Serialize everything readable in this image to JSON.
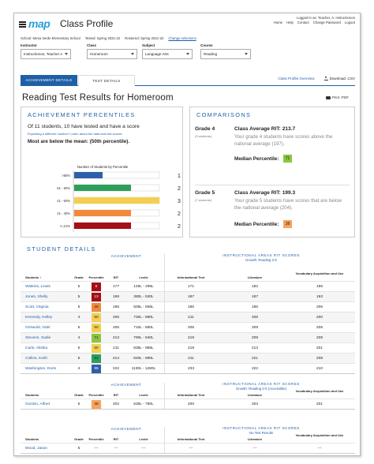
{
  "header": {
    "logo": "map",
    "title": "Class Profile",
    "user": "Logged in as: Teacher, A, Instructionon",
    "nav": [
      "Home",
      "Help",
      "Contact",
      "Change Password",
      "Logout"
    ]
  },
  "context": {
    "school": "School: Mesa Verde Elementary School",
    "tested": "Tested: Spring 2021-22",
    "rostered": "Rostered: Spring 2021-22",
    "change_link": "Change selections"
  },
  "filters": [
    {
      "label": "Instructor",
      "value": "Instructionon, Teacher A"
    },
    {
      "label": "Class",
      "value": "Homeroom"
    },
    {
      "label": "Subject",
      "value": "Language Arts"
    },
    {
      "label": "Course",
      "value": "Reading"
    }
  ],
  "tabs": {
    "active": "ACHIEVEMENT DETAILS",
    "inactive": "TEST DETAILS",
    "overview_link": "Class Profile Overview",
    "download": "Download .CSV"
  },
  "page_title": "Reading Test Results for Homeroom",
  "print_label": "Print .PDF",
  "percentiles": {
    "title": "ACHIEVEMENT PERCENTILES",
    "tested_text": "Of 11 students, 10 have tested and have a score",
    "sub_text": "Expecting a different number? Learn about the data and test scores",
    "mean_text": "Most are below the mean: (50th percentile).",
    "chart_title": "Number of Students by Percentile"
  },
  "chart_data": {
    "type": "bar",
    "orientation": "horizontal",
    "title": "Number of Students by Percentile",
    "categories": [
      ">80%",
      "61 - 80%",
      "41 - 60%",
      "21 - 40%",
      "<=21%"
    ],
    "values": [
      1,
      2,
      3,
      2,
      2
    ],
    "colors": [
      "#2e5fa8",
      "#2e9e5b",
      "#f4cf4f",
      "#f08a3c",
      "#a50f15"
    ],
    "xlim": [
      0,
      3
    ]
  },
  "comparisons": {
    "title": "COMPARISONS",
    "grades": [
      {
        "name": "Grade 4",
        "count": "(3 students)",
        "avg": "Class Average RIT: 213.7",
        "desc": "Your grade 4 students have scores above the national average (197).",
        "median_label": "Median Percentile:",
        "median": "71",
        "median_color": "#8cc63f"
      },
      {
        "name": "Grade 5",
        "count": "(7 students)",
        "avg": "Class Average RIT: 199.3",
        "desc": "Your grade 5 students have scores that are below the national average (204).",
        "median_label": "Median Percentile:",
        "median": "38",
        "median_color": "#f7a35c"
      }
    ]
  },
  "student_details": {
    "title": "STUDENT DETAILS",
    "achievement_label": "ACHIEVEMENT",
    "headers": {
      "students": "Students ↕",
      "grade": "Grade",
      "percentile": "Percentile",
      "rit": "RIT",
      "lexile": "Lexile",
      "informational": "Informational Text",
      "literature": "Literature",
      "vocab": "Vocabulary Acquisition and Use"
    },
    "groups": [
      {
        "areas_title": "INSTRUCTIONAL AREAS RIT SCORES",
        "areas_sub": "Growth: Reading 2-5",
        "students_header": "Students ↕",
        "rows": [
          {
            "name": "Watkins, Lewis",
            "grade": "5",
            "pct": "8",
            "color": "#a50f15",
            "text_color": "#ffffff",
            "rit": "177",
            "lexile": "145L - 295L",
            "info": "171",
            "lit": "182",
            "vocab": "186"
          },
          {
            "name": "Jones, Shelly",
            "grade": "5",
            "pct": "13",
            "color": "#a50f15",
            "text_color": "#ffffff",
            "rit": "189",
            "lexile": "380L - 530L",
            "info": "187",
            "lit": "187",
            "vocab": "193"
          },
          {
            "name": "Scott, Virginia",
            "grade": "5",
            "pct": "25",
            "color": "#f08a3c",
            "text_color": "#222222",
            "rit": "196",
            "lexile": "505L - 655L",
            "info": "196",
            "lit": "186",
            "vocab": "206"
          },
          {
            "name": "Kennedy, Kelley",
            "grade": "4",
            "pct": "60",
            "color": "#f4cf4f",
            "text_color": "#222222",
            "rit": "206",
            "lexile": "730L - 880L",
            "info": "211",
            "lit": "206",
            "vocab": "200"
          },
          {
            "name": "Griswold, Odel",
            "grade": "5",
            "pct": "50",
            "color": "#f4cf4f",
            "text_color": "#222222",
            "rit": "206",
            "lexile": "710L - 860L",
            "info": "205",
            "lit": "209",
            "vocab": "205"
          },
          {
            "name": "Stevens, Sadie",
            "grade": "4",
            "pct": "71",
            "color": "#8cc63f",
            "text_color": "#222222",
            "rit": "213",
            "lexile": "790L - 940L",
            "info": "219",
            "lit": "209",
            "vocab": "209"
          },
          {
            "name": "Carlo, Alishia",
            "grade": "5",
            "pct": "60",
            "color": "#f4cf4f",
            "text_color": "#222222",
            "rit": "211",
            "lexile": "835L - 985L",
            "info": "218",
            "lit": "213",
            "vocab": "201"
          },
          {
            "name": "Collins, Keith",
            "grade": "5",
            "pct": "64",
            "color": "#2e9e5b",
            "text_color": "#222222",
            "rit": "214",
            "lexile": "840L - 990L",
            "info": "211",
            "lit": "221",
            "vocab": "208"
          },
          {
            "name": "Washington, Doris",
            "grade": "4",
            "pct": "95",
            "color": "#2e5fa8",
            "text_color": "#ffffff",
            "rit": "222",
            "lexile": "1130L - 1280L",
            "info": "233",
            "lit": "222",
            "vocab": "210"
          }
        ]
      },
      {
        "areas_title": "INSTRUCTIONAL AREAS RIT SCORES",
        "areas_sub": "Growth: Reading 2-5 (Accessible)",
        "students_header": "Students",
        "rows": [
          {
            "name": "Gordon, Alfred",
            "grade": "5",
            "pct": "38",
            "color": "#f7a35c",
            "text_color": "#222222",
            "rit": "202",
            "lexile": "630L - 780L",
            "info": "200",
            "lit": "203",
            "vocab": "201"
          }
        ]
      },
      {
        "areas_title": "INSTRUCTIONAL AREAS RIT SCORES",
        "areas_sub": "No Test Results",
        "students_header": "Students",
        "rows": [
          {
            "name": "Wood, Jason",
            "grade": "5",
            "pct": "---",
            "color": "",
            "text_color": "#222222",
            "rit": "---",
            "lexile": "---",
            "info": "---",
            "lit": "---",
            "vocab": "---"
          }
        ]
      }
    ]
  }
}
